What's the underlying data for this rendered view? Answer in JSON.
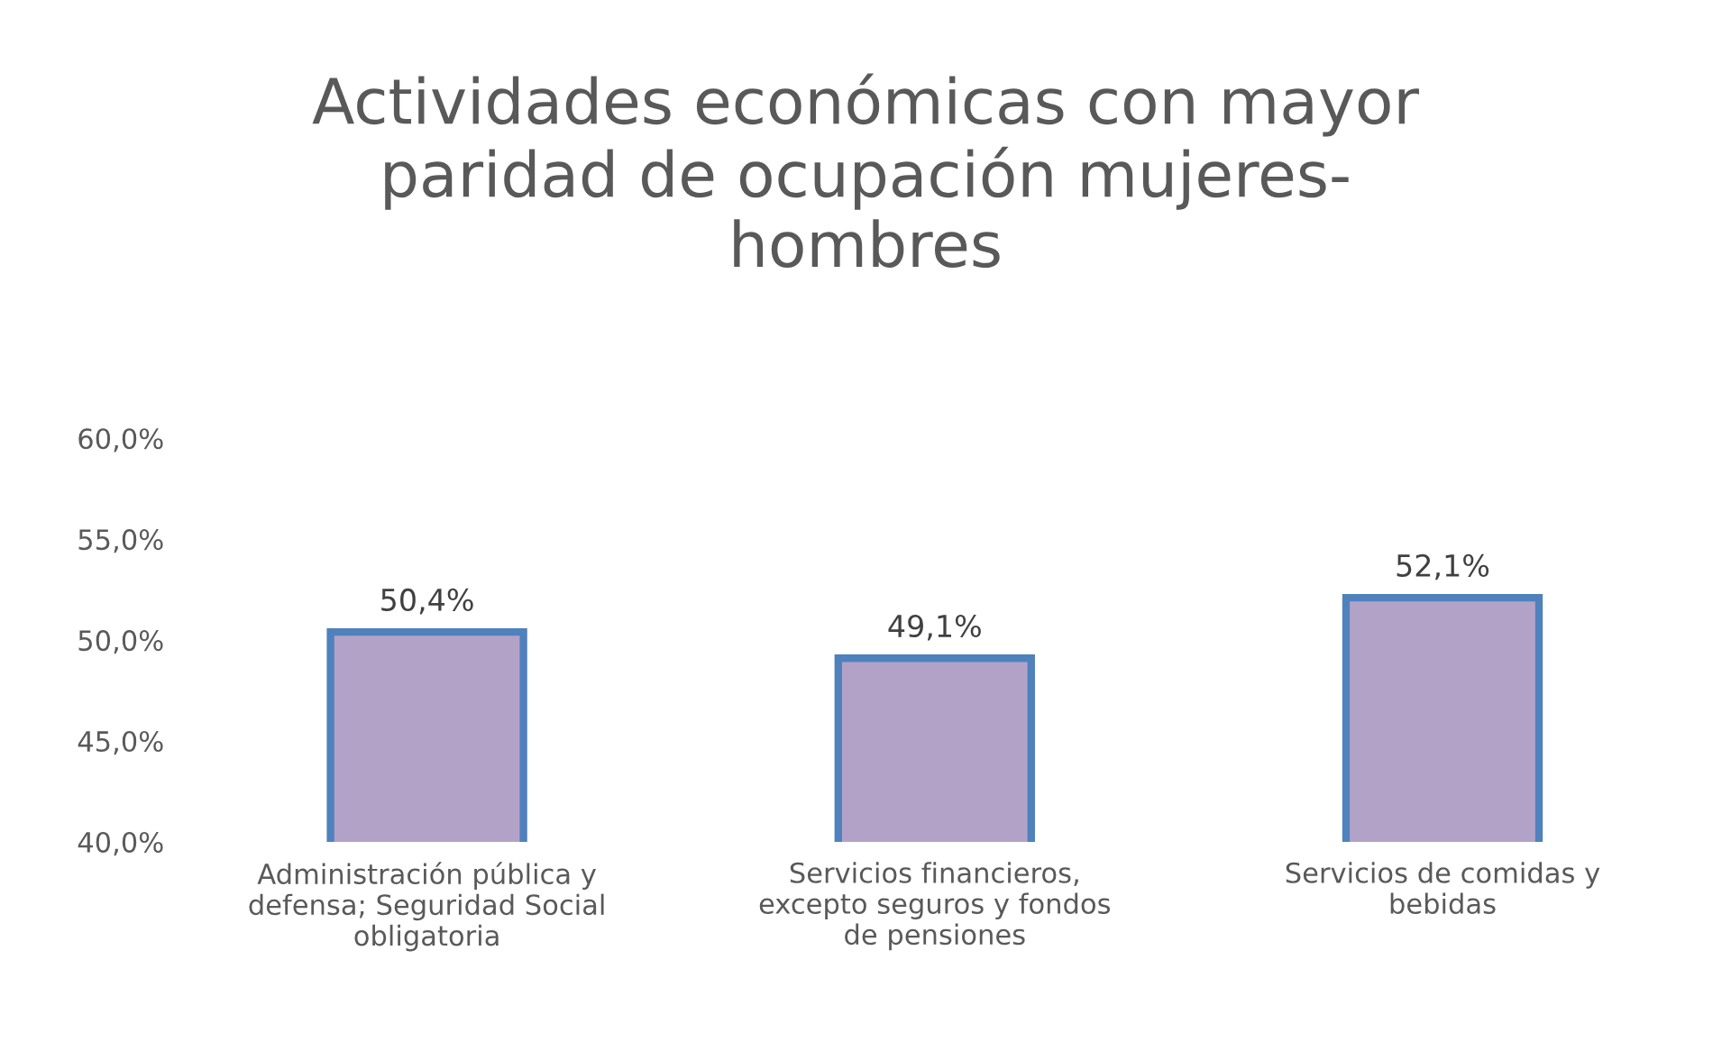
{
  "chart_data": {
    "type": "bar",
    "title": "Actividades económicas con mayor\nparidad de ocupación mujeres-\nhombres",
    "categories": [
      "Administración pública y\ndefensa; Seguridad Social\nobligatoria",
      "Servicios financieros,\nexcepto seguros y fondos\nde pensiones",
      "Servicios de comidas y\nbebidas"
    ],
    "values": [
      50.4,
      49.1,
      52.1
    ],
    "value_labels": [
      "50,4%",
      "49,1%",
      "52,1%"
    ],
    "color": "#b3a2c7",
    "ylim": [
      40,
      60
    ],
    "yticks": [
      {
        "value": 40,
        "label": "40,0%"
      },
      {
        "value": 45,
        "label": "45,0%"
      },
      {
        "value": 50,
        "label": "50,0%"
      },
      {
        "value": 55,
        "label": "55,0%"
      },
      {
        "value": 60,
        "label": "60,0%"
      }
    ],
    "grid": false,
    "legend": false
  }
}
